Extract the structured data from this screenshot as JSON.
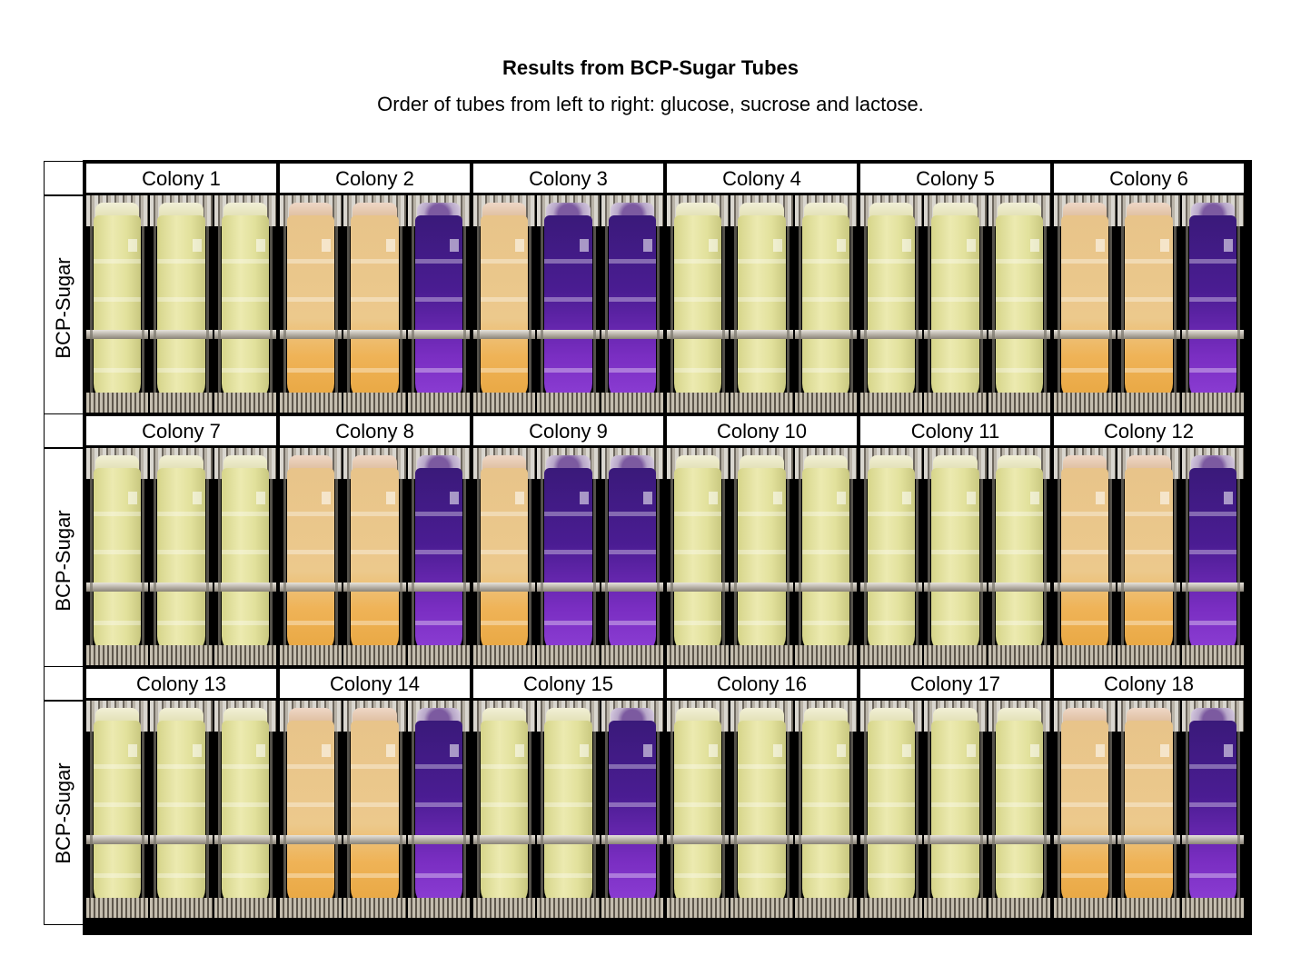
{
  "title": "Results from BCP-Sugar Tubes",
  "subtitle": "Order of tubes from left to right: glucose, sucrose and lactose.",
  "row_label": "BCP-Sugar",
  "tube_order": [
    "glucose",
    "sucrose",
    "lactose"
  ],
  "colors": {
    "yellow": "#e4e2a2",
    "orange": "#ecb25a",
    "purple": "#5a1fa0"
  },
  "rows": [
    {
      "label": "BCP-Sugar",
      "colonies": [
        {
          "name": "Colony 1",
          "tubes": [
            "yellow",
            "yellow",
            "yellow"
          ]
        },
        {
          "name": "Colony 2",
          "tubes": [
            "orange",
            "orange",
            "purple"
          ]
        },
        {
          "name": "Colony 3",
          "tubes": [
            "orange",
            "purple",
            "purple"
          ]
        },
        {
          "name": "Colony 4",
          "tubes": [
            "yellow",
            "yellow",
            "yellow"
          ]
        },
        {
          "name": "Colony 5",
          "tubes": [
            "yellow",
            "yellow",
            "yellow"
          ]
        },
        {
          "name": "Colony 6",
          "tubes": [
            "orange",
            "orange",
            "purple"
          ]
        }
      ]
    },
    {
      "label": "BCP-Sugar",
      "colonies": [
        {
          "name": "Colony 7",
          "tubes": [
            "yellow",
            "yellow",
            "yellow"
          ]
        },
        {
          "name": "Colony 8",
          "tubes": [
            "orange",
            "orange",
            "purple"
          ]
        },
        {
          "name": "Colony 9",
          "tubes": [
            "orange",
            "purple",
            "purple"
          ]
        },
        {
          "name": "Colony 10",
          "tubes": [
            "yellow",
            "yellow",
            "yellow"
          ]
        },
        {
          "name": "Colony 11",
          "tubes": [
            "yellow",
            "yellow",
            "yellow"
          ]
        },
        {
          "name": "Colony 12",
          "tubes": [
            "orange",
            "orange",
            "purple"
          ]
        }
      ]
    },
    {
      "label": "BCP-Sugar",
      "colonies": [
        {
          "name": "Colony 13",
          "tubes": [
            "yellow",
            "yellow",
            "yellow"
          ]
        },
        {
          "name": "Colony 14",
          "tubes": [
            "orange",
            "orange",
            "purple"
          ]
        },
        {
          "name": "Colony 15",
          "tubes": [
            "yellow",
            "yellow",
            "purple"
          ]
        },
        {
          "name": "Colony 16",
          "tubes": [
            "yellow",
            "yellow",
            "yellow"
          ]
        },
        {
          "name": "Colony 17",
          "tubes": [
            "yellow",
            "yellow",
            "yellow"
          ]
        },
        {
          "name": "Colony 18",
          "tubes": [
            "orange",
            "orange",
            "purple"
          ]
        }
      ]
    }
  ]
}
